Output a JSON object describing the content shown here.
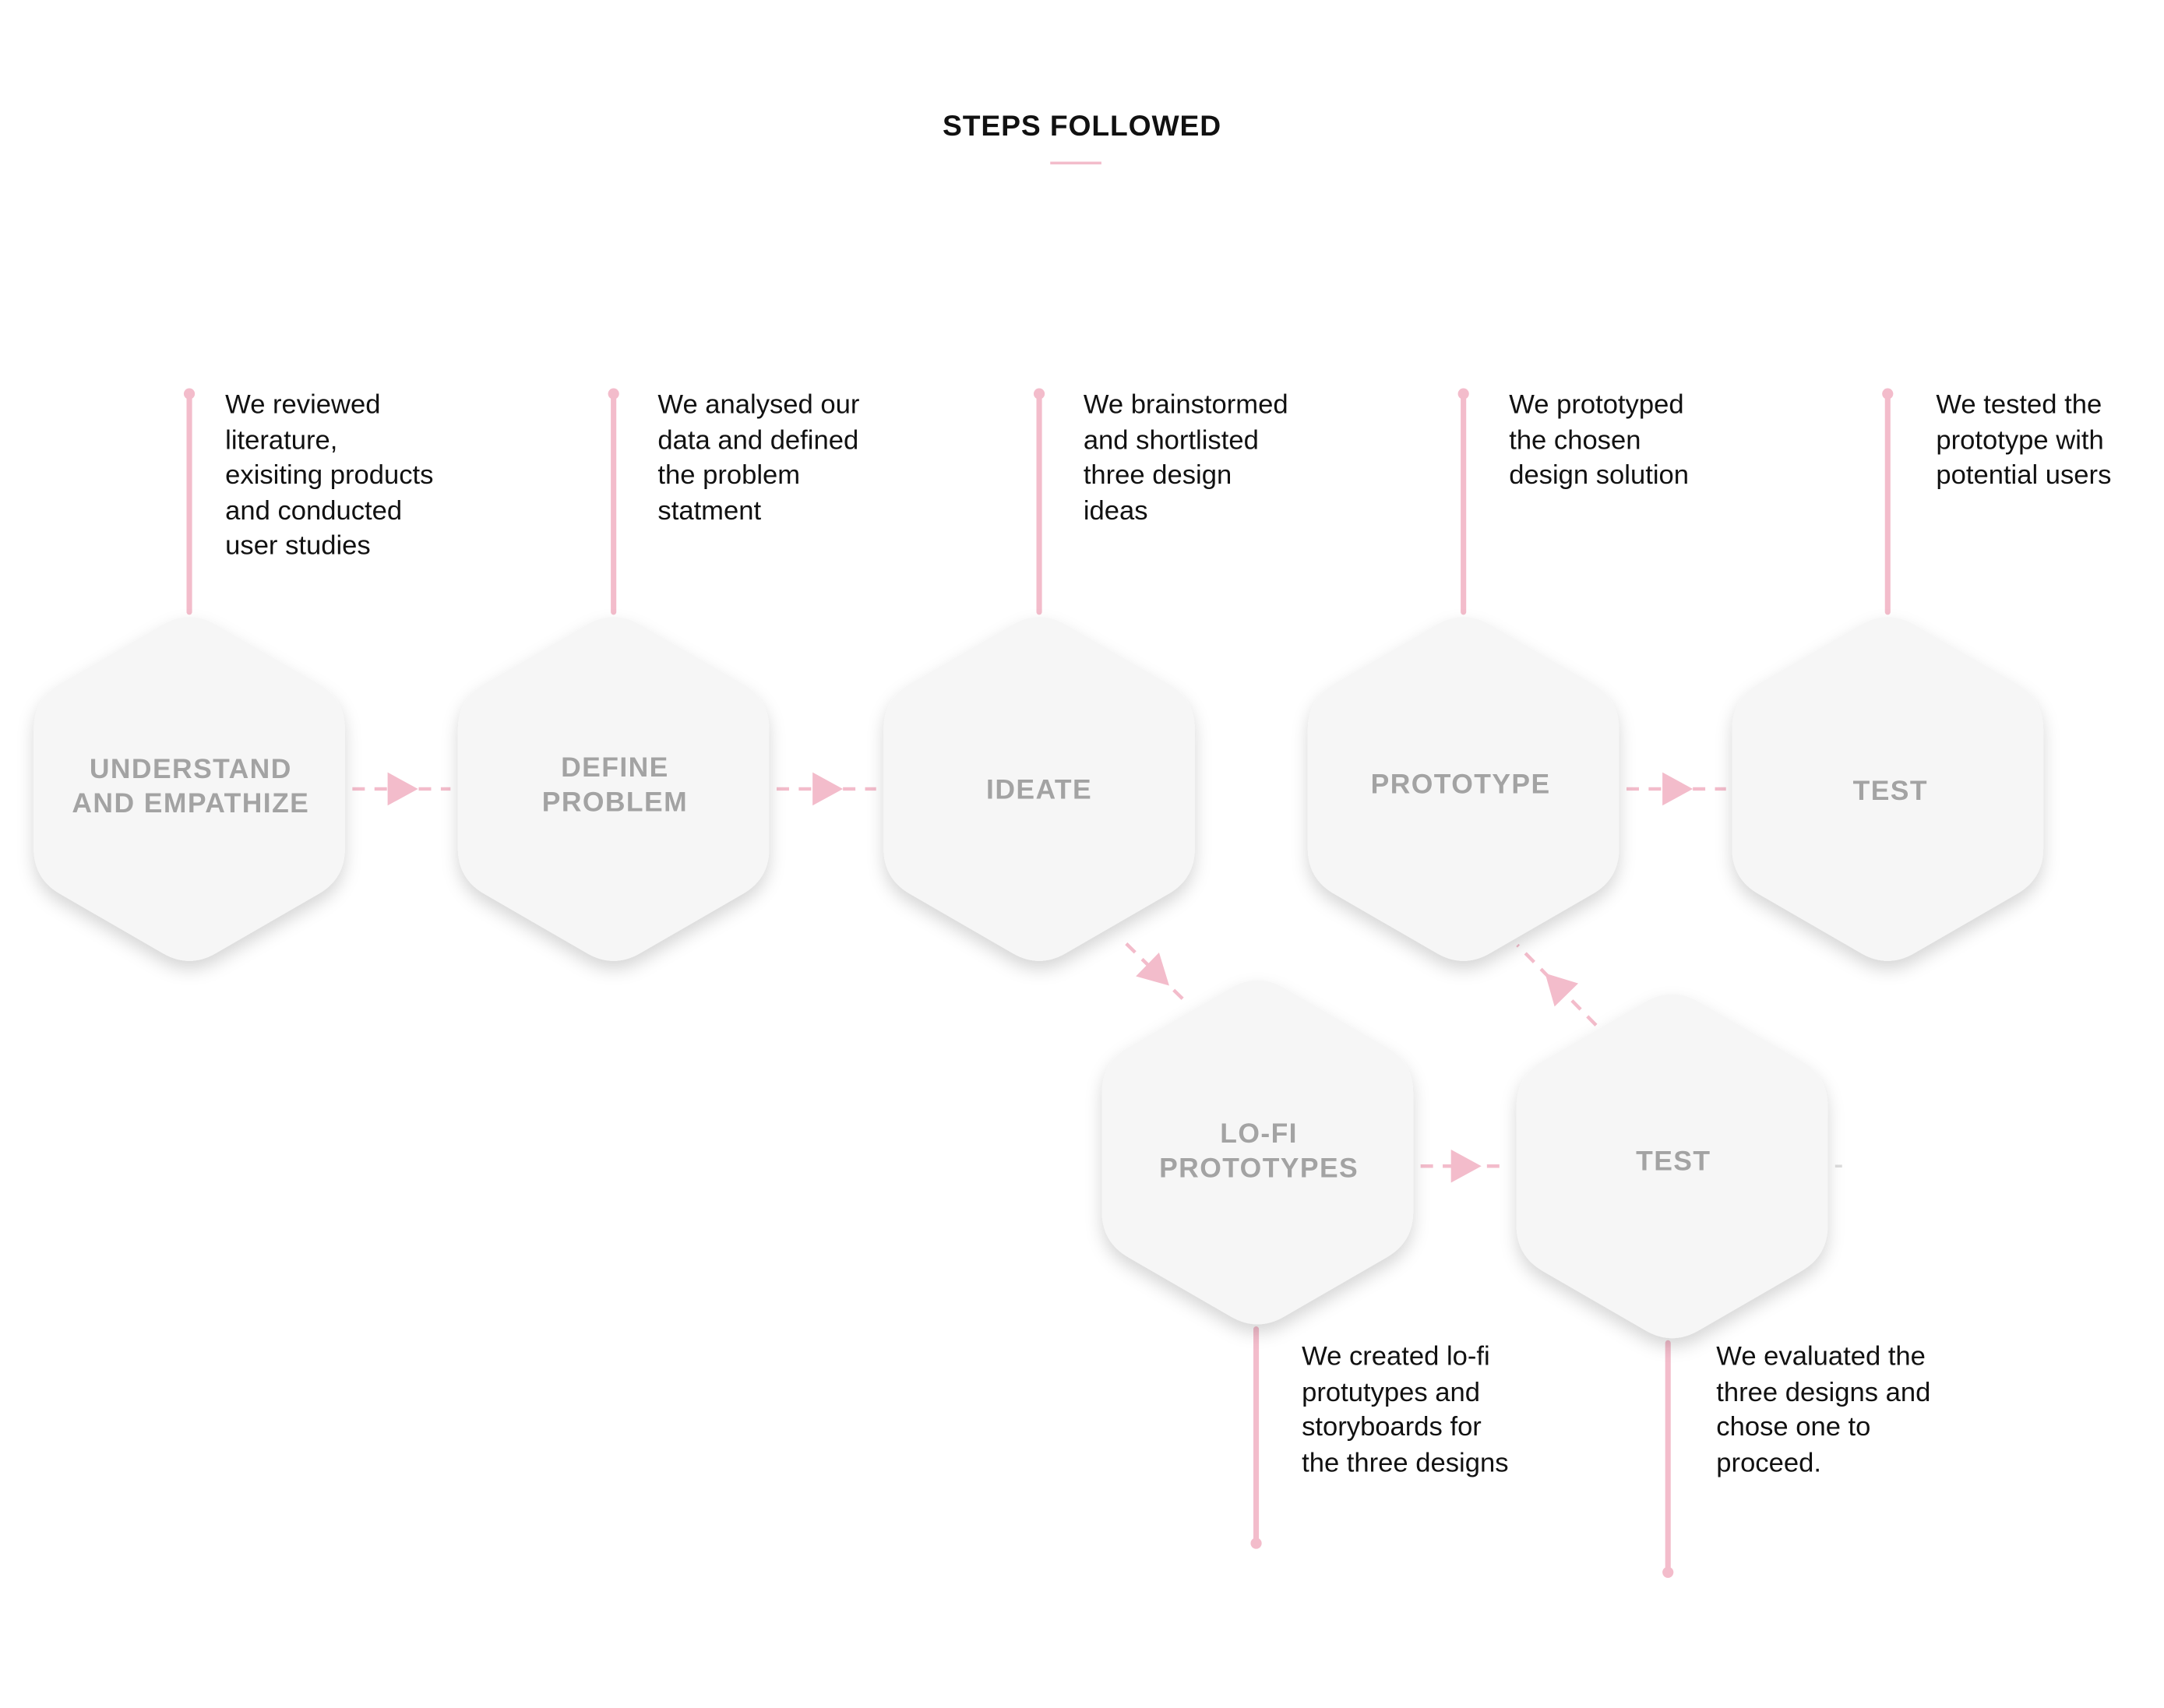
{
  "header": {
    "title": "STEPS FOLLOWED"
  },
  "colors": {
    "accent": "#f3bccb",
    "node_fill": "#f6f6f6",
    "node_label": "#a3a3a3",
    "text": "#111111"
  },
  "steps": [
    {
      "label": "UNDERSTAND\nAND EMPATHIZE",
      "description": "We reviewed\nliterature,\nexisiting products\nand conducted\nuser studies"
    },
    {
      "label": "DEFINE\nPROBLEM",
      "description": "We analysed our\ndata and defined\nthe problem\nstatment"
    },
    {
      "label": "IDEATE",
      "description": "We brainstormed\nand shortlisted\nthree design\nideas"
    },
    {
      "label": "PROTOTYPE",
      "description": "We prototyped\nthe chosen\ndesign solution"
    },
    {
      "label": "TEST",
      "description": "We tested the\nprototype with\npotential users"
    },
    {
      "label": "LO-FI\nPROTOTYPES",
      "description": "We created lo-fi\nprotutypes and\nstoryboards for\nthe three designs"
    },
    {
      "label": "TEST",
      "description": "We evaluated the\nthree designs and\nchose one to\nproceed."
    }
  ]
}
